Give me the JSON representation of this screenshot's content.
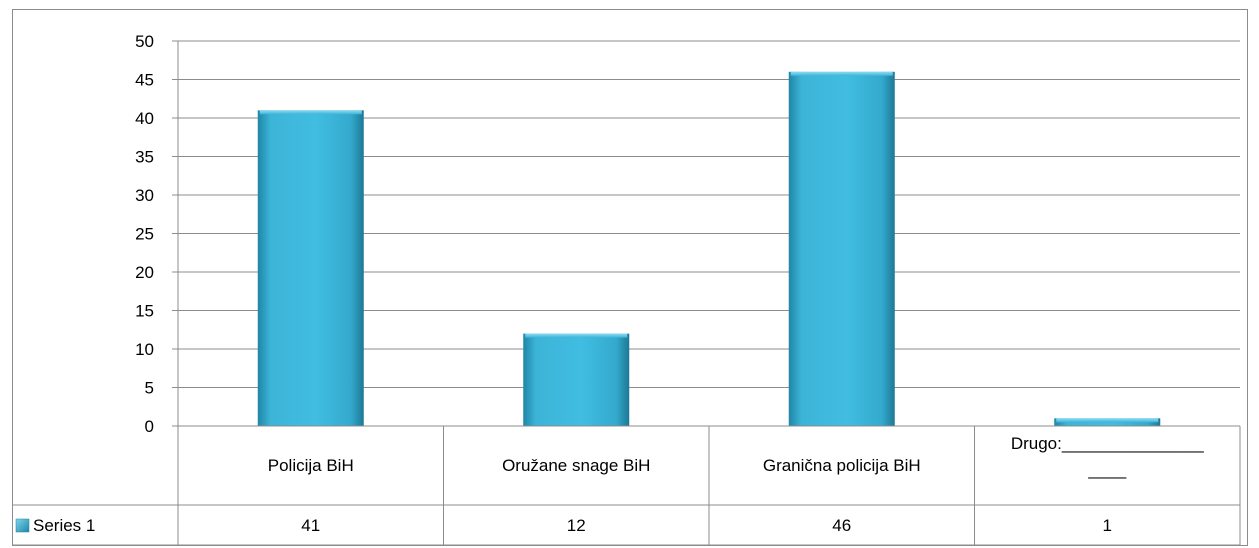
{
  "chart_data": {
    "type": "bar",
    "categories": [
      "Policija BiH",
      "Oružane snage BiH",
      "Granična policija BiH",
      "Drugo:_______________\n____"
    ],
    "series": [
      {
        "name": "Series 1",
        "values": [
          41,
          12,
          46,
          1
        ]
      }
    ],
    "ylim": [
      0,
      50
    ],
    "yticks": [
      0,
      5,
      10,
      15,
      20,
      25,
      30,
      35,
      40,
      45,
      50
    ],
    "grid": true,
    "legend": "data-table",
    "data_table": true,
    "colors": {
      "bar": "#3cb4d8",
      "bar_dark": "#1f7f9e",
      "grid": "#8c8c8c"
    }
  }
}
